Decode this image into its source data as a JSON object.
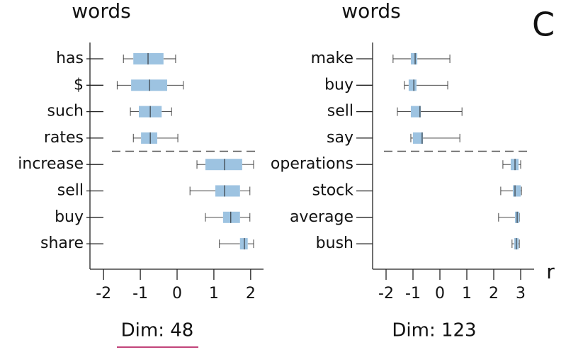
{
  "panel_label": "C",
  "chart_data": [
    {
      "type": "box",
      "ylabel": "words",
      "caption": "Dim: 48",
      "selected": true,
      "color": "#9dc3e1",
      "categories": [
        "has",
        "$",
        "such",
        "rates",
        "increase",
        "sell",
        "buy",
        "share"
      ],
      "whislo": [
        -1.46,
        -1.63,
        -1.27,
        -1.19,
        0.54,
        0.35,
        0.77,
        1.15
      ],
      "q1": [
        -1.19,
        -1.25,
        -1.04,
        -0.98,
        0.77,
        1.04,
        1.25,
        1.71
      ],
      "med": [
        -0.79,
        -0.75,
        -0.73,
        -0.73,
        1.29,
        1.29,
        1.46,
        1.83
      ],
      "q3": [
        -0.37,
        -0.27,
        -0.42,
        -0.54,
        1.77,
        1.71,
        1.71,
        1.92
      ],
      "whishi": [
        -0.04,
        0.17,
        -0.15,
        0.02,
        2.08,
        1.98,
        1.98,
        2.08
      ],
      "xlim": [
        -2.35,
        2.35
      ],
      "xticks": [
        -2,
        -1,
        0,
        1,
        2
      ]
    },
    {
      "type": "box",
      "ylabel": "words",
      "xlabel": "r",
      "caption": "Dim: 123",
      "selected": false,
      "color": "#9dc3e1",
      "categories": [
        "make",
        "buy",
        "sell",
        "say",
        "operations",
        "stock",
        "average",
        "bush"
      ],
      "whislo": [
        -1.74,
        -1.32,
        -1.58,
        -1.08,
        2.34,
        2.26,
        2.18,
        2.68
      ],
      "q1": [
        -1.08,
        -1.16,
        -1.08,
        -1.0,
        2.63,
        2.71,
        2.79,
        2.76
      ],
      "med": [
        -0.92,
        -0.97,
        -0.74,
        -0.66,
        2.79,
        2.79,
        2.87,
        2.84
      ],
      "q3": [
        -0.84,
        -0.87,
        -0.71,
        -0.63,
        2.92,
        3.0,
        2.95,
        2.92
      ],
      "whishi": [
        0.37,
        0.29,
        0.82,
        0.74,
        3.0,
        3.03,
        2.95,
        2.95
      ],
      "xlim": [
        -2.5,
        3.5
      ],
      "xticks": [
        -2,
        -1,
        0,
        1,
        2,
        3
      ]
    }
  ]
}
